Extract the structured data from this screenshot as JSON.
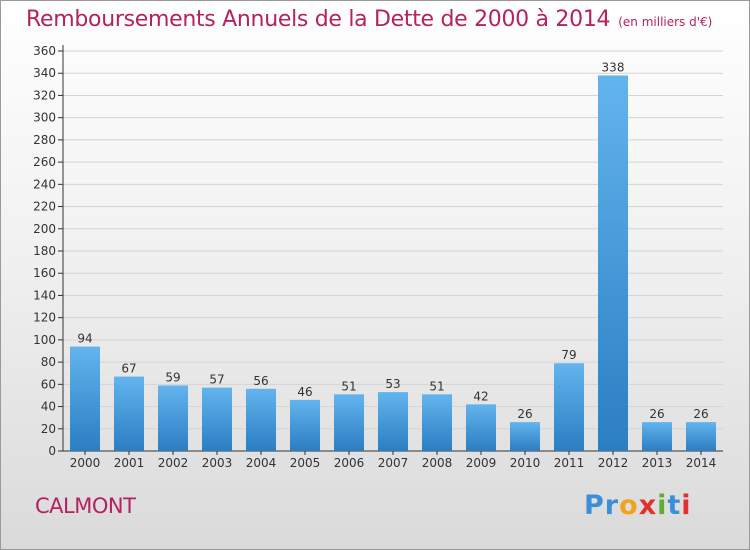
{
  "title": "Remboursements Annuels de la Dette de 2000 à 2014",
  "subtitle": "(en milliers d'€)",
  "commune": "CALMONT",
  "brand": {
    "letters": [
      "P",
      "r",
      "o",
      "x",
      "i",
      "t",
      "i"
    ],
    "colors": [
      "#3a8fd8",
      "#3a8fd8",
      "#f2a21b",
      "#e0312c",
      "#5cb030",
      "#3a8fd8",
      "#e0312c"
    ]
  },
  "colors": {
    "title": "#b5225f",
    "bar_light": "#63b4ee",
    "bar_dark": "#2a7ec2",
    "axis": "#333333",
    "grid": "#d4d4d4"
  },
  "chart_data": {
    "type": "bar",
    "categories": [
      "2000",
      "2001",
      "2002",
      "2003",
      "2004",
      "2005",
      "2006",
      "2007",
      "2008",
      "2009",
      "2010",
      "2011",
      "2012",
      "2013",
      "2014"
    ],
    "values": [
      94,
      67,
      59,
      57,
      56,
      46,
      51,
      53,
      51,
      42,
      26,
      79,
      338,
      26,
      26
    ],
    "ylim": [
      0,
      360
    ],
    "ytick_step": 20,
    "grid": true,
    "title": "Remboursements Annuels de la Dette de 2000 à 2014",
    "xlabel": "",
    "ylabel": ""
  }
}
